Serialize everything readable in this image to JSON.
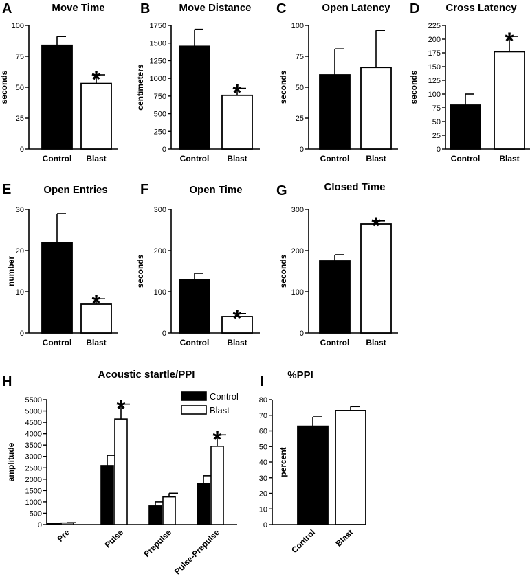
{
  "chart_data": [
    {
      "panel": "A",
      "type": "bar",
      "title": "Move Time",
      "ylabel": "seconds",
      "categories": [
        "Control",
        "Blast"
      ],
      "values": [
        84,
        53
      ],
      "errors": [
        7,
        7
      ],
      "significant": [
        false,
        true
      ],
      "ylim": [
        0,
        100
      ],
      "yticks": [
        0,
        25,
        50,
        75,
        100
      ],
      "colors": [
        "#000000",
        "#ffffff"
      ]
    },
    {
      "panel": "B",
      "type": "bar",
      "title": "Move Distance",
      "ylabel": "centimeters",
      "categories": [
        "Control",
        "Blast"
      ],
      "values": [
        1455,
        760
      ],
      "errors": [
        240,
        100
      ],
      "significant": [
        false,
        true
      ],
      "ylim": [
        0,
        1750
      ],
      "yticks": [
        0,
        250,
        500,
        750,
        1000,
        1250,
        1500,
        1750
      ],
      "colors": [
        "#000000",
        "#ffffff"
      ]
    },
    {
      "panel": "C",
      "type": "bar",
      "title": "Open Latency",
      "ylabel": "seconds",
      "categories": [
        "Control",
        "Blast"
      ],
      "values": [
        60,
        66
      ],
      "errors": [
        21,
        30
      ],
      "significant": [
        false,
        false
      ],
      "ylim": [
        0,
        100
      ],
      "yticks": [
        0,
        25,
        50,
        75,
        100
      ],
      "colors": [
        "#000000",
        "#ffffff"
      ]
    },
    {
      "panel": "D",
      "type": "bar",
      "title": "Cross Latency",
      "ylabel": "seconds",
      "categories": [
        "Control",
        "Blast"
      ],
      "values": [
        80,
        177
      ],
      "errors": [
        20,
        28
      ],
      "significant": [
        false,
        true
      ],
      "ylim": [
        0,
        225
      ],
      "yticks": [
        0,
        25,
        50,
        75,
        100,
        125,
        150,
        175,
        200,
        225
      ],
      "colors": [
        "#000000",
        "#ffffff"
      ]
    },
    {
      "panel": "E",
      "type": "bar",
      "title": "Open Entries",
      "ylabel": "number",
      "categories": [
        "Control",
        "Blast"
      ],
      "values": [
        22,
        7
      ],
      "errors": [
        7,
        1.3
      ],
      "significant": [
        false,
        true
      ],
      "ylim": [
        0,
        30
      ],
      "yticks": [
        0,
        10,
        20,
        30
      ],
      "colors": [
        "#000000",
        "#ffffff"
      ]
    },
    {
      "panel": "F",
      "type": "bar",
      "title": "Open Time",
      "ylabel": "seconds",
      "categories": [
        "Control",
        "Blast"
      ],
      "values": [
        130,
        40
      ],
      "errors": [
        15,
        7
      ],
      "significant": [
        false,
        true
      ],
      "ylim": [
        0,
        300
      ],
      "yticks": [
        0,
        100,
        200,
        300
      ],
      "colors": [
        "#000000",
        "#ffffff"
      ]
    },
    {
      "panel": "G",
      "type": "bar",
      "title": "Closed Time",
      "ylabel": "seconds",
      "categories": [
        "Control",
        "Blast"
      ],
      "values": [
        175,
        265
      ],
      "errors": [
        15,
        7
      ],
      "significant": [
        false,
        true
      ],
      "ylim": [
        0,
        300
      ],
      "yticks": [
        0,
        100,
        200,
        300
      ],
      "colors": [
        "#000000",
        "#ffffff"
      ]
    },
    {
      "panel": "H",
      "type": "bar",
      "title": "Acoustic startle/PPI",
      "ylabel": "amplitude",
      "categories": [
        "Pre",
        "Pulse",
        "Prepulse",
        "Pulse-Prepulse"
      ],
      "series": [
        {
          "name": "Control",
          "color": "#000000",
          "values": [
            50,
            2600,
            820,
            1800
          ],
          "errors": [
            10,
            450,
            180,
            350
          ]
        },
        {
          "name": "Blast",
          "color": "#ffffff",
          "values": [
            70,
            4650,
            1220,
            3450
          ],
          "errors": [
            15,
            650,
            160,
            500
          ]
        }
      ],
      "significant_blast": [
        false,
        true,
        false,
        true
      ],
      "ylim": [
        0,
        5500
      ],
      "yticks": [
        0,
        500,
        1000,
        1500,
        2000,
        2500,
        3000,
        3500,
        4000,
        4500,
        5000,
        5500
      ],
      "legend": "top-right"
    },
    {
      "panel": "I",
      "type": "bar",
      "title": "%PPI",
      "ylabel": "percent",
      "categories": [
        "Control",
        "Blast"
      ],
      "values": [
        63,
        73
      ],
      "errors": [
        6,
        2.5
      ],
      "significant": [
        false,
        false
      ],
      "ylim": [
        0,
        80
      ],
      "yticks": [
        0,
        10,
        20,
        30,
        40,
        50,
        60,
        70,
        80
      ],
      "colors": [
        "#000000",
        "#ffffff"
      ]
    }
  ]
}
